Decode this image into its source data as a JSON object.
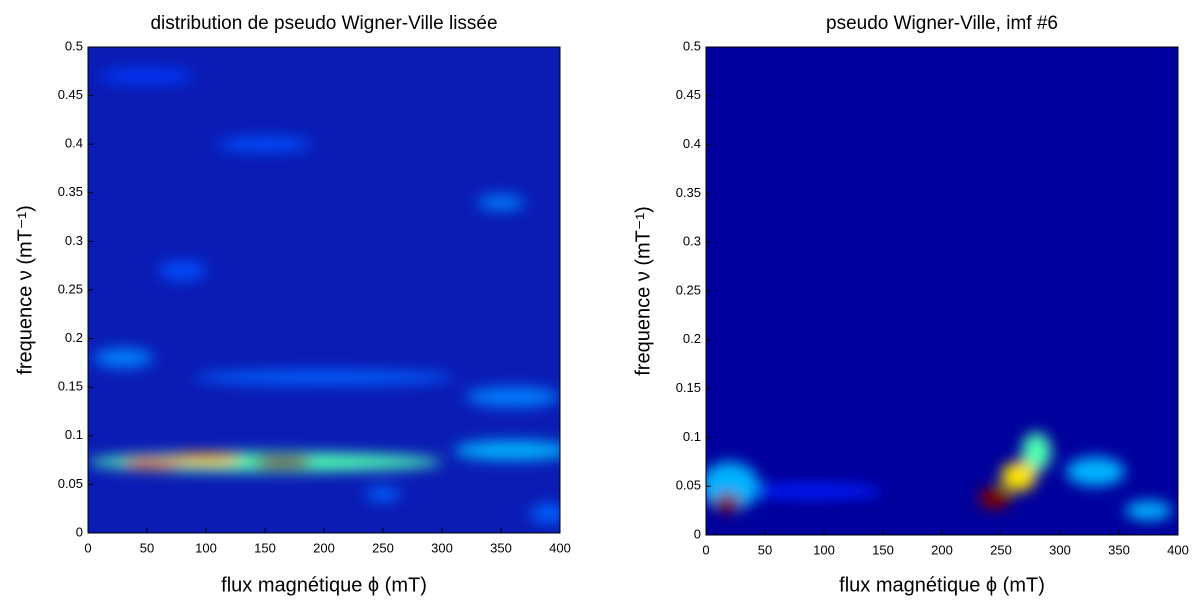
{
  "chart_data": [
    {
      "type": "heatmap",
      "title": "distribution de pseudo Wigner-Ville lissée",
      "xlabel": "flux magnétique ϕ (mT)",
      "ylabel": "frequence ν (mT⁻¹)",
      "xlim": [
        0,
        400
      ],
      "ylim": [
        0,
        0.5
      ],
      "xticks": [
        0,
        50,
        100,
        150,
        200,
        250,
        300,
        350,
        400
      ],
      "yticks": [
        0,
        0.05,
        0.1,
        0.15,
        0.2,
        0.25,
        0.3,
        0.35,
        0.4,
        0.45,
        0.5
      ],
      "colormap": "jet",
      "blobs": [
        {
          "x": 30,
          "y": 0.18,
          "width": 50,
          "height": 0.02,
          "intensity": 0.25
        },
        {
          "x": 200,
          "y": 0.16,
          "width": 220,
          "height": 0.015,
          "intensity": 0.22
        },
        {
          "x": 360,
          "y": 0.14,
          "width": 80,
          "height": 0.02,
          "intensity": 0.25
        },
        {
          "x": 350,
          "y": 0.34,
          "width": 40,
          "height": 0.015,
          "intensity": 0.25
        },
        {
          "x": 80,
          "y": 0.27,
          "width": 40,
          "height": 0.02,
          "intensity": 0.2
        },
        {
          "x": 150,
          "y": 0.4,
          "width": 80,
          "height": 0.015,
          "intensity": 0.2
        },
        {
          "x": 50,
          "y": 0.47,
          "width": 80,
          "height": 0.015,
          "intensity": 0.18
        },
        {
          "x": 250,
          "y": 0.04,
          "width": 30,
          "height": 0.015,
          "intensity": 0.22
        },
        {
          "x": 390,
          "y": 0.02,
          "width": 30,
          "height": 0.02,
          "intensity": 0.22
        },
        {
          "x": 360,
          "y": 0.085,
          "width": 100,
          "height": 0.02,
          "intensity": 0.3
        },
        {
          "x": 150,
          "y": 0.073,
          "width": 300,
          "height": 0.02,
          "intensity": 0.45
        },
        {
          "x": 100,
          "y": 0.076,
          "width": 60,
          "height": 0.012,
          "intensity": 0.7
        },
        {
          "x": 55,
          "y": 0.072,
          "width": 50,
          "height": 0.01,
          "intensity": 0.8
        },
        {
          "x": 165,
          "y": 0.073,
          "width": 50,
          "height": 0.012,
          "intensity": 1
        }
      ]
    },
    {
      "type": "heatmap",
      "title": "pseudo Wigner-Ville, imf #6",
      "xlabel": "flux magnétique ϕ (mT)",
      "ylabel": "frequence ν (mT⁻¹)",
      "xlim": [
        0,
        400
      ],
      "ylim": [
        0,
        0.5
      ],
      "xticks": [
        0,
        50,
        100,
        150,
        200,
        250,
        300,
        350,
        400
      ],
      "yticks": [
        0,
        0.05,
        0.1,
        0.15,
        0.2,
        0.25,
        0.3,
        0.35,
        0.4,
        0.45,
        0.5
      ],
      "colormap": "jet",
      "blobs": [
        {
          "x": 90,
          "y": 0.045,
          "width": 120,
          "height": 0.015,
          "intensity": 0.15
        },
        {
          "x": 330,
          "y": 0.065,
          "width": 50,
          "height": 0.03,
          "intensity": 0.3
        },
        {
          "x": 375,
          "y": 0.025,
          "width": 40,
          "height": 0.02,
          "intensity": 0.3
        },
        {
          "x": 20,
          "y": 0.05,
          "width": 50,
          "height": 0.05,
          "intensity": 0.3
        },
        {
          "x": 280,
          "y": 0.085,
          "width": 25,
          "height": 0.04,
          "intensity": 0.45
        },
        {
          "x": 265,
          "y": 0.06,
          "width": 30,
          "height": 0.03,
          "intensity": 0.65
        },
        {
          "x": 245,
          "y": 0.038,
          "width": 28,
          "height": 0.022,
          "intensity": 1
        },
        {
          "x": 18,
          "y": 0.033,
          "width": 22,
          "height": 0.02,
          "intensity": 1
        }
      ]
    }
  ]
}
